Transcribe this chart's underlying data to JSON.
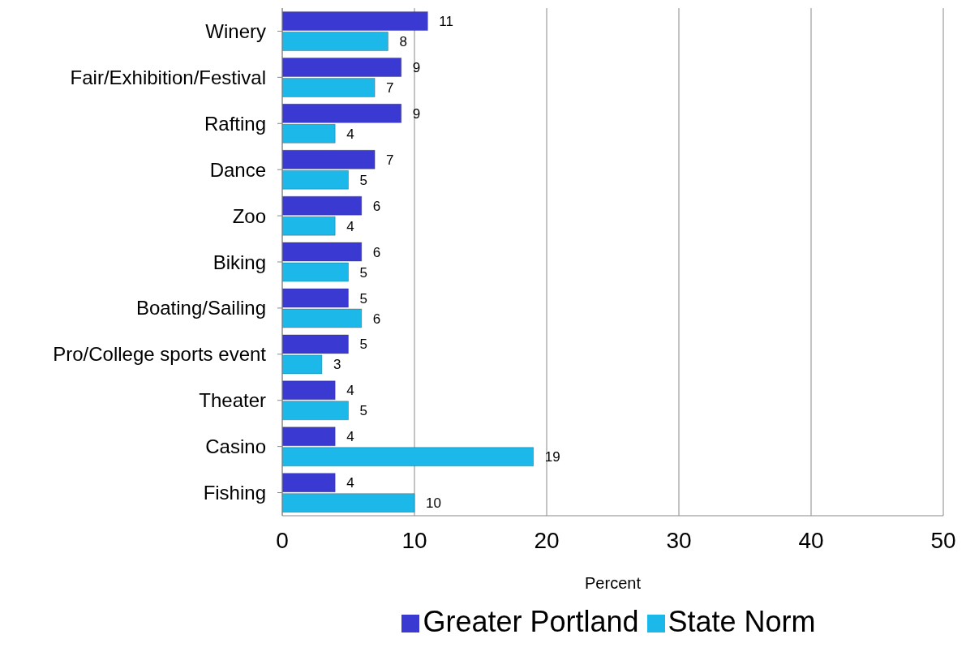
{
  "chart_data": {
    "type": "bar",
    "orientation": "horizontal",
    "xlabel": "Percent",
    "categories": [
      "Winery",
      "Fair/Exhibition/Festival",
      "Rafting",
      "Dance",
      "Zoo",
      "Biking",
      "Boating/Sailing",
      "Pro/College sports event",
      "Theater",
      "Casino",
      "Fishing"
    ],
    "series": [
      {
        "name": "Greater Portland",
        "color": "#3a3ad2",
        "values": [
          11,
          9,
          9,
          7,
          6,
          6,
          5,
          5,
          4,
          4,
          4
        ]
      },
      {
        "name": "State Norm",
        "color": "#1cb8ea",
        "values": [
          8,
          7,
          4,
          5,
          4,
          5,
          6,
          3,
          5,
          19,
          10
        ]
      }
    ],
    "xlim": [
      0,
      50
    ],
    "xticks": [
      0,
      10,
      20,
      30,
      40,
      50
    ],
    "grid": "x",
    "legend": "bottom",
    "data_labels": true
  }
}
